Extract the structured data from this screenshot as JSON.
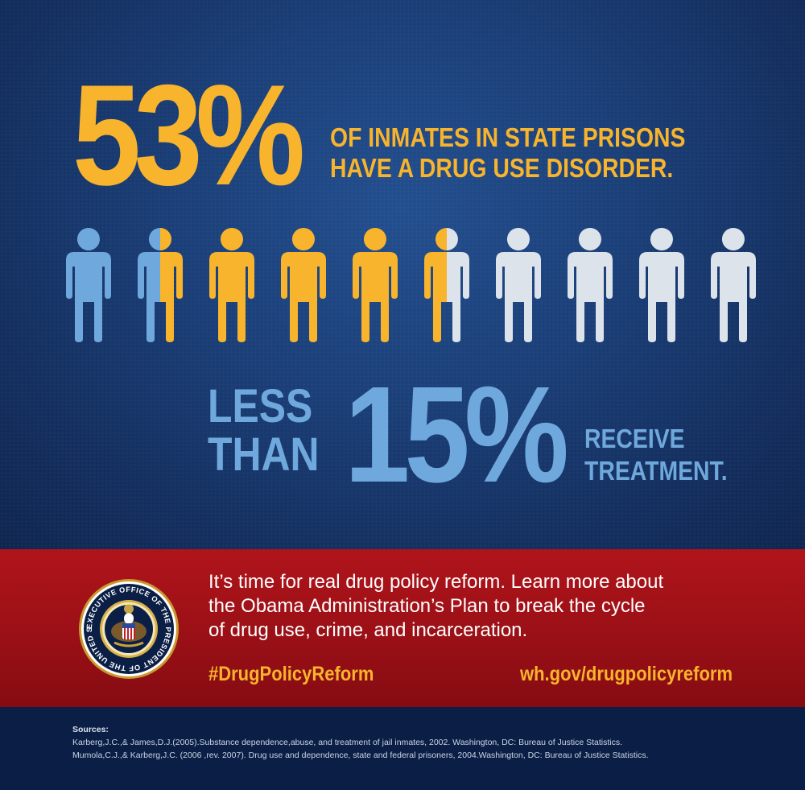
{
  "stat_primary": {
    "value": "53%",
    "line1": "OF INMATES IN STATE PRISONS",
    "line2": "HAVE A DRUG USE DISORDER."
  },
  "figures": {
    "count": 10,
    "colors": {
      "neutral_blue": "#6fa8dc",
      "highlight_gold": "#f7b42c",
      "light_gray": "#dde3ea"
    },
    "fills": [
      {
        "left": "neutral_blue",
        "right": "neutral_blue"
      },
      {
        "left": "neutral_blue",
        "right": "highlight_gold"
      },
      {
        "left": "highlight_gold",
        "right": "highlight_gold"
      },
      {
        "left": "highlight_gold",
        "right": "highlight_gold"
      },
      {
        "left": "highlight_gold",
        "right": "highlight_gold"
      },
      {
        "left": "highlight_gold",
        "right": "light_gray"
      },
      {
        "left": "light_gray",
        "right": "light_gray"
      },
      {
        "left": "light_gray",
        "right": "light_gray"
      },
      {
        "left": "light_gray",
        "right": "light_gray"
      },
      {
        "left": "light_gray",
        "right": "light_gray"
      }
    ]
  },
  "stat_secondary": {
    "less": "LESS",
    "than": "THAN",
    "value": "15%",
    "line1": "RECEIVE",
    "line2": "TREATMENT."
  },
  "banner": {
    "seal_icon": "executive-office-seal",
    "seal_text": "EXECUTIVE OFFICE OF THE PRESIDENT OF THE UNITED STATES",
    "line1": "It’s time for real drug policy reform. Learn more about",
    "line2": "the Obama Administration’s Plan to break the cycle",
    "line3": "of drug use, crime, and incarceration.",
    "hashtag": "#DrugPolicyReform",
    "url": "wh.gov/drugpolicyreform"
  },
  "sources": {
    "header": "Sources:",
    "items": [
      "Karberg,J.C.,& James,D.J.(2005).Substance dependence,abuse, and treatment of jail inmates, 2002. Washington, DC: Bureau of Justice Statistics.",
      "Mumola,C.J.,& Karberg,J.C. (2006 ,rev. 2007). Drug use and dependence, state and federal prisoners, 2004.Washington, DC: Bureau of Justice Statistics."
    ]
  },
  "colors": {
    "background_blue": "#1b3f78",
    "accent_gold": "#f7b42c",
    "accent_blue": "#6fa8dc",
    "banner_red": "#a3121a",
    "footer_navy": "#0b1f46"
  }
}
